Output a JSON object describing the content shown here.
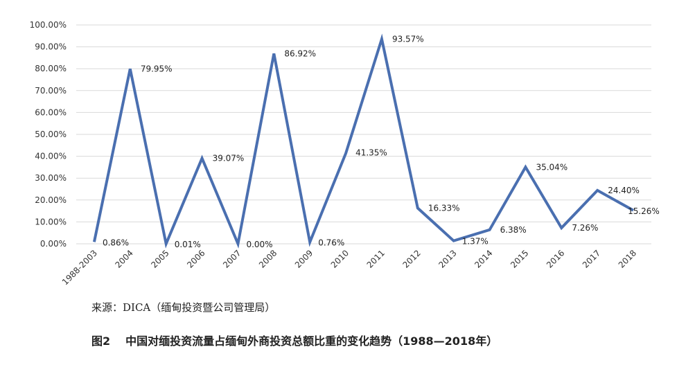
{
  "chart_data": {
    "type": "line",
    "categories": [
      "1988-2003",
      "2004",
      "2005",
      "2006",
      "2007",
      "2008",
      "2009",
      "2010",
      "2011",
      "2012",
      "2013",
      "2014",
      "2015",
      "2016",
      "2017",
      "2018"
    ],
    "series": [
      {
        "values": [
          0.86,
          79.95,
          0.01,
          39.07,
          0.0,
          86.92,
          0.76,
          41.35,
          93.57,
          16.33,
          1.37,
          6.38,
          35.04,
          7.26,
          24.4,
          15.26
        ]
      }
    ],
    "data_labels": [
      "0.86%",
      "79.95%",
      "0.01%",
      "39.07%",
      "0.00%",
      "86.92%",
      "0.76%",
      "41.35%",
      "93.57%",
      "16.33%",
      "1.37%",
      "6.38%",
      "35.04%",
      "7.26%",
      "24.40%",
      "15.26%"
    ],
    "y_ticks": [
      "0.00%",
      "10.00%",
      "20.00%",
      "30.00%",
      "40.00%",
      "50.00%",
      "60.00%",
      "70.00%",
      "80.00%",
      "90.00%",
      "100.00%"
    ],
    "ylim": [
      0,
      100
    ],
    "grid": true,
    "legend": "none",
    "line_color": "#4a6fb0",
    "grid_color": "#d9d9d9"
  },
  "source_text": "来源：DICA（缅甸投资暨公司管理局）",
  "caption": {
    "figure_number": "图2",
    "text": "中国对缅投资流量占缅甸外商投资总额比重的变化趋势（1988—2018年）"
  }
}
